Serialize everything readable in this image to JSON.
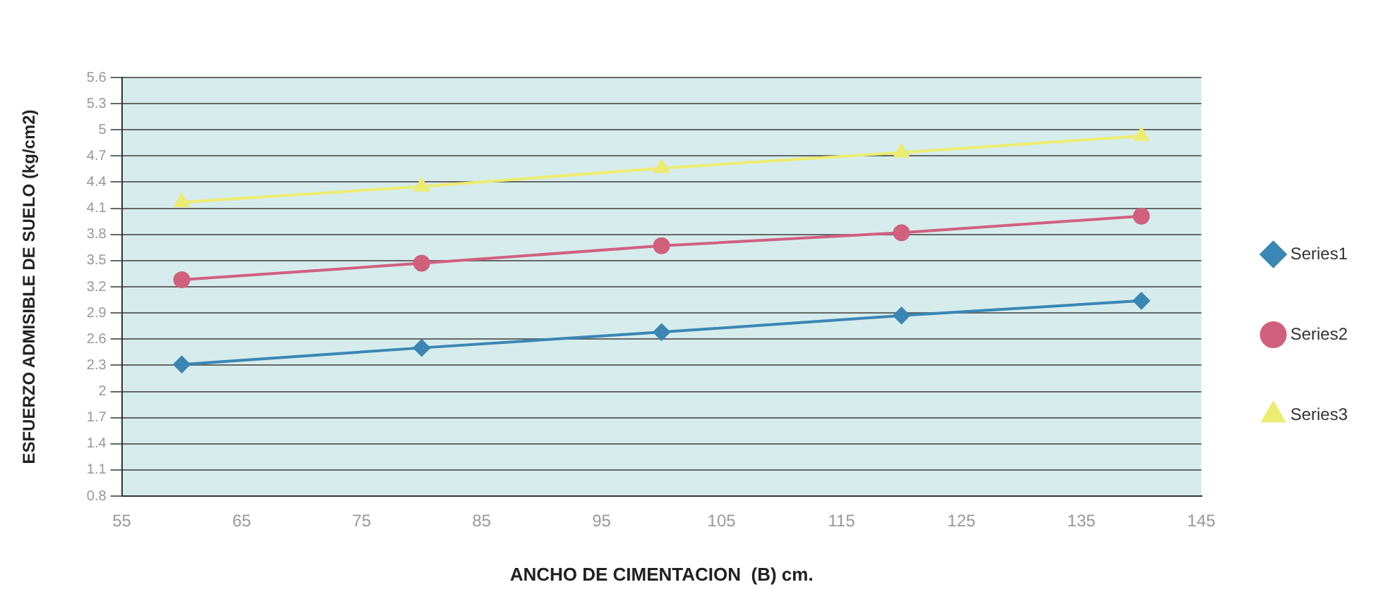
{
  "chart_data": {
    "type": "line",
    "xlabel": "ANCHO DE CIMENTACION  (B) cm.",
    "ylabel": "ESFUERZO ADMISIBLE DE SUELO (kg/cm2)",
    "x": [
      60,
      80,
      100,
      120,
      140
    ],
    "series": [
      {
        "name": "Series1",
        "color": "#3a86b4",
        "marker": "diamond",
        "values": [
          2.31,
          2.5,
          2.68,
          2.87,
          3.04
        ]
      },
      {
        "name": "Series2",
        "color": "#d0607e",
        "marker": "circle",
        "values": [
          3.28,
          3.47,
          3.67,
          3.82,
          4.01
        ]
      },
      {
        "name": "Series3",
        "color": "#ecec70",
        "marker": "triangle",
        "values": [
          4.17,
          4.35,
          4.56,
          4.74,
          4.93
        ]
      }
    ],
    "xlim": [
      55,
      145
    ],
    "xticks": [
      55,
      65,
      75,
      85,
      95,
      105,
      115,
      125,
      135,
      145
    ],
    "ylim": [
      0.8,
      5.6
    ],
    "yticks": [
      0.8,
      1.1,
      1.4,
      1.7,
      2.0,
      2.3,
      2.6,
      2.9,
      3.2,
      3.5,
      3.8,
      4.1,
      4.4,
      4.7,
      5.0,
      5.3,
      5.6
    ],
    "grid": "y",
    "legend": "right"
  }
}
